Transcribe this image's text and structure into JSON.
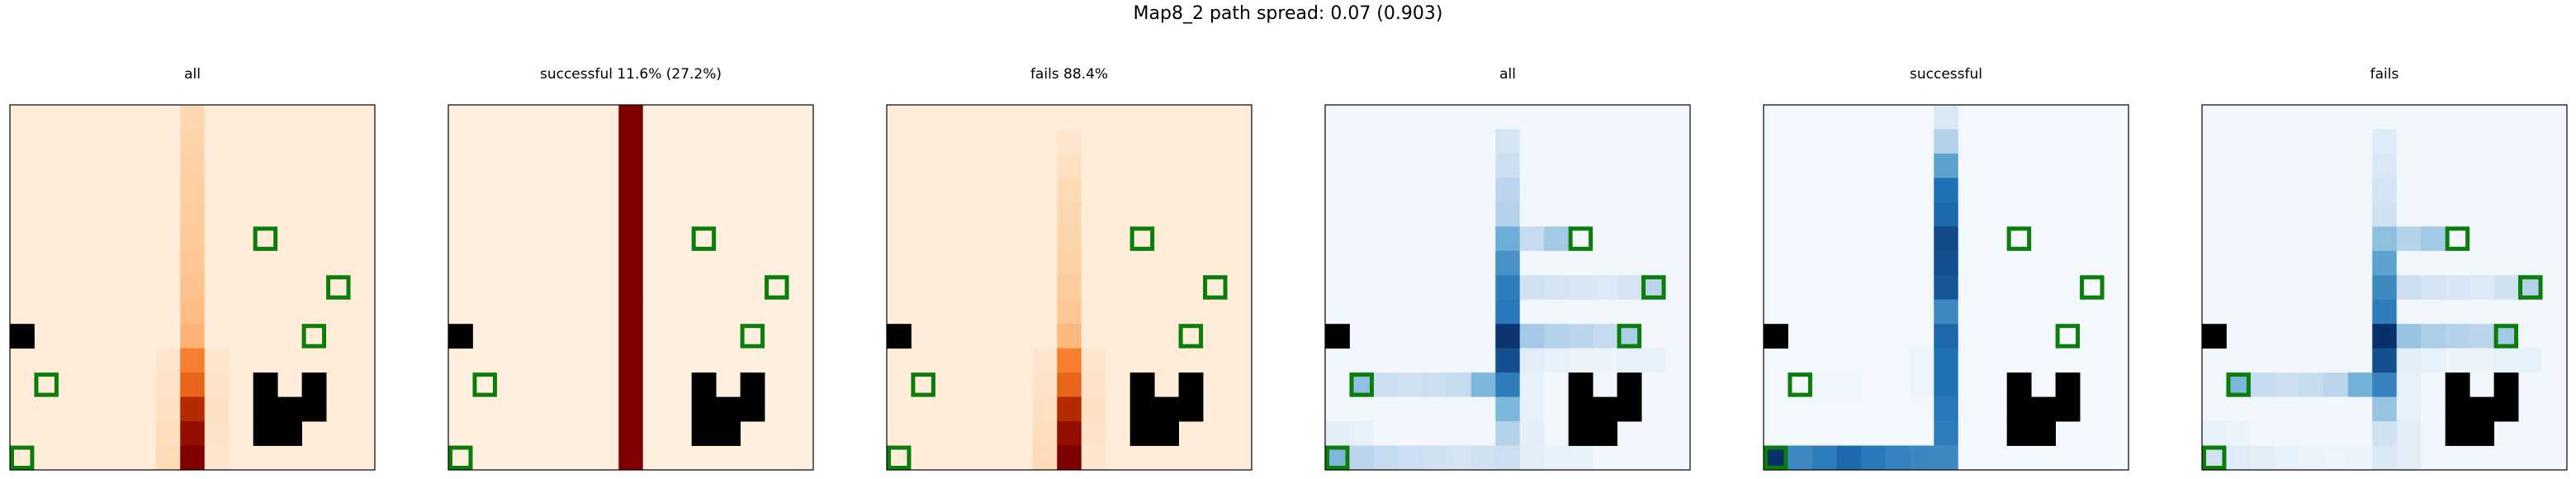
{
  "figure": {
    "suptitle": "Map8_2 path spread: 0.07 (0.903)"
  },
  "chart_data": [
    {
      "type": "heatmap",
      "title": "all",
      "colormap": "Oranges-like",
      "grid": {
        "rows": 15,
        "cols": 15
      },
      "axes": {
        "ticks": "none"
      },
      "cells": [
        {
          "r": 0,
          "c": 7,
          "v": 0.2
        },
        {
          "r": 1,
          "c": 7,
          "v": 0.22
        },
        {
          "r": 2,
          "c": 7,
          "v": 0.24
        },
        {
          "r": 3,
          "c": 7,
          "v": 0.25
        },
        {
          "r": 4,
          "c": 7,
          "v": 0.26
        },
        {
          "r": 5,
          "c": 7,
          "v": 0.27
        },
        {
          "r": 6,
          "c": 7,
          "v": 0.28
        },
        {
          "r": 7,
          "c": 7,
          "v": 0.3
        },
        {
          "r": 8,
          "c": 7,
          "v": 0.32
        },
        {
          "r": 9,
          "c": 7,
          "v": 0.36
        },
        {
          "r": 10,
          "c": 7,
          "v": 0.55
        },
        {
          "r": 11,
          "c": 7,
          "v": 0.65
        },
        {
          "r": 12,
          "c": 7,
          "v": 0.85
        },
        {
          "r": 13,
          "c": 7,
          "v": 0.95
        },
        {
          "r": 14,
          "c": 7,
          "v": 1.0
        },
        {
          "r": 10,
          "c": 6,
          "v": 0.1
        },
        {
          "r": 11,
          "c": 6,
          "v": 0.12
        },
        {
          "r": 12,
          "c": 6,
          "v": 0.14
        },
        {
          "r": 13,
          "c": 6,
          "v": 0.16
        },
        {
          "r": 14,
          "c": 6,
          "v": 0.18
        },
        {
          "r": 10,
          "c": 8,
          "v": 0.1
        },
        {
          "r": 11,
          "c": 8,
          "v": 0.12
        },
        {
          "r": 12,
          "c": 8,
          "v": 0.14
        },
        {
          "r": 13,
          "c": 8,
          "v": 0.12
        },
        {
          "r": 14,
          "c": 8,
          "v": 0.1
        }
      ],
      "default_value": 0.06
    },
    {
      "type": "heatmap",
      "title": "successful 11.6% (27.2%)",
      "colormap": "Oranges-like",
      "grid": {
        "rows": 15,
        "cols": 15
      },
      "axes": {
        "ticks": "none"
      },
      "cells": [
        {
          "r": 0,
          "c": 7,
          "v": 1.0
        },
        {
          "r": 1,
          "c": 7,
          "v": 1.0
        },
        {
          "r": 2,
          "c": 7,
          "v": 1.0
        },
        {
          "r": 3,
          "c": 7,
          "v": 1.0
        },
        {
          "r": 4,
          "c": 7,
          "v": 1.0
        },
        {
          "r": 5,
          "c": 7,
          "v": 1.0
        },
        {
          "r": 6,
          "c": 7,
          "v": 1.0
        },
        {
          "r": 7,
          "c": 7,
          "v": 1.0
        },
        {
          "r": 8,
          "c": 7,
          "v": 1.0
        },
        {
          "r": 9,
          "c": 7,
          "v": 1.0
        },
        {
          "r": 10,
          "c": 7,
          "v": 1.0
        },
        {
          "r": 11,
          "c": 7,
          "v": 1.0
        },
        {
          "r": 12,
          "c": 7,
          "v": 1.0
        },
        {
          "r": 13,
          "c": 7,
          "v": 1.0
        },
        {
          "r": 14,
          "c": 7,
          "v": 1.0
        }
      ],
      "default_value": 0.04
    },
    {
      "type": "heatmap",
      "title": "fails 88.4%",
      "colormap": "Oranges-like",
      "grid": {
        "rows": 15,
        "cols": 15
      },
      "axes": {
        "ticks": "none"
      },
      "cells": [
        {
          "r": 1,
          "c": 7,
          "v": 0.1
        },
        {
          "r": 2,
          "c": 7,
          "v": 0.14
        },
        {
          "r": 3,
          "c": 7,
          "v": 0.18
        },
        {
          "r": 4,
          "c": 7,
          "v": 0.2
        },
        {
          "r": 5,
          "c": 7,
          "v": 0.22
        },
        {
          "r": 6,
          "c": 7,
          "v": 0.24
        },
        {
          "r": 7,
          "c": 7,
          "v": 0.26
        },
        {
          "r": 8,
          "c": 7,
          "v": 0.28
        },
        {
          "r": 9,
          "c": 7,
          "v": 0.34
        },
        {
          "r": 10,
          "c": 7,
          "v": 0.55
        },
        {
          "r": 11,
          "c": 7,
          "v": 0.65
        },
        {
          "r": 12,
          "c": 7,
          "v": 0.85
        },
        {
          "r": 13,
          "c": 7,
          "v": 0.95
        },
        {
          "r": 14,
          "c": 7,
          "v": 1.0
        },
        {
          "r": 10,
          "c": 6,
          "v": 0.1
        },
        {
          "r": 11,
          "c": 6,
          "v": 0.12
        },
        {
          "r": 12,
          "c": 6,
          "v": 0.14
        },
        {
          "r": 13,
          "c": 6,
          "v": 0.16
        },
        {
          "r": 14,
          "c": 6,
          "v": 0.18
        },
        {
          "r": 10,
          "c": 8,
          "v": 0.1
        },
        {
          "r": 11,
          "c": 8,
          "v": 0.12
        },
        {
          "r": 12,
          "c": 8,
          "v": 0.14
        },
        {
          "r": 13,
          "c": 8,
          "v": 0.12
        },
        {
          "r": 14,
          "c": 8,
          "v": 0.1
        }
      ],
      "default_value": 0.06
    },
    {
      "type": "heatmap",
      "title": "all",
      "colormap": "Blues-like",
      "grid": {
        "rows": 15,
        "cols": 15
      },
      "axes": {
        "ticks": "none"
      },
      "cells": [
        {
          "r": 1,
          "c": 7,
          "v": 0.18
        },
        {
          "r": 2,
          "c": 7,
          "v": 0.22
        },
        {
          "r": 3,
          "c": 7,
          "v": 0.28
        },
        {
          "r": 4,
          "c": 7,
          "v": 0.3
        },
        {
          "r": 5,
          "c": 7,
          "v": 0.5
        },
        {
          "r": 6,
          "c": 7,
          "v": 0.62
        },
        {
          "r": 7,
          "c": 7,
          "v": 0.7
        },
        {
          "r": 8,
          "c": 7,
          "v": 0.72
        },
        {
          "r": 9,
          "c": 7,
          "v": 0.98
        },
        {
          "r": 10,
          "c": 7,
          "v": 0.88
        },
        {
          "r": 11,
          "c": 7,
          "v": 0.7
        },
        {
          "r": 12,
          "c": 7,
          "v": 0.45
        },
        {
          "r": 13,
          "c": 7,
          "v": 0.3
        },
        {
          "r": 14,
          "c": 7,
          "v": 0.22
        },
        {
          "r": 5,
          "c": 8,
          "v": 0.25
        },
        {
          "r": 5,
          "c": 9,
          "v": 0.35
        },
        {
          "r": 7,
          "c": 8,
          "v": 0.2
        },
        {
          "r": 7,
          "c": 9,
          "v": 0.18
        },
        {
          "r": 7,
          "c": 10,
          "v": 0.16
        },
        {
          "r": 7,
          "c": 11,
          "v": 0.14
        },
        {
          "r": 7,
          "c": 12,
          "v": 0.18
        },
        {
          "r": 7,
          "c": 13,
          "v": 0.28
        },
        {
          "r": 9,
          "c": 8,
          "v": 0.35
        },
        {
          "r": 9,
          "c": 9,
          "v": 0.3
        },
        {
          "r": 9,
          "c": 10,
          "v": 0.28
        },
        {
          "r": 9,
          "c": 11,
          "v": 0.25
        },
        {
          "r": 9,
          "c": 12,
          "v": 0.32
        },
        {
          "r": 10,
          "c": 8,
          "v": 0.1
        },
        {
          "r": 10,
          "c": 9,
          "v": 0.08
        },
        {
          "r": 10,
          "c": 10,
          "v": 0.06
        },
        {
          "r": 10,
          "c": 11,
          "v": 0.06
        },
        {
          "r": 10,
          "c": 12,
          "v": 0.08
        },
        {
          "r": 10,
          "c": 13,
          "v": 0.08
        },
        {
          "r": 11,
          "c": 1,
          "v": 0.4
        },
        {
          "r": 11,
          "c": 2,
          "v": 0.22
        },
        {
          "r": 11,
          "c": 3,
          "v": 0.2
        },
        {
          "r": 11,
          "c": 4,
          "v": 0.22
        },
        {
          "r": 11,
          "c": 5,
          "v": 0.25
        },
        {
          "r": 11,
          "c": 6,
          "v": 0.45
        },
        {
          "r": 11,
          "c": 8,
          "v": 0.08
        },
        {
          "r": 12,
          "c": 8,
          "v": 0.08
        },
        {
          "r": 13,
          "c": 8,
          "v": 0.1
        },
        {
          "r": 14,
          "c": 8,
          "v": 0.1
        },
        {
          "r": 14,
          "c": 9,
          "v": 0.08
        },
        {
          "r": 14,
          "c": 10,
          "v": 0.08
        },
        {
          "r": 14,
          "c": 0,
          "v": 0.45
        },
        {
          "r": 14,
          "c": 1,
          "v": 0.28
        },
        {
          "r": 14,
          "c": 2,
          "v": 0.25
        },
        {
          "r": 14,
          "c": 3,
          "v": 0.22
        },
        {
          "r": 14,
          "c": 4,
          "v": 0.2
        },
        {
          "r": 14,
          "c": 5,
          "v": 0.18
        },
        {
          "r": 14,
          "c": 6,
          "v": 0.2
        },
        {
          "r": 13,
          "c": 0,
          "v": 0.1
        },
        {
          "r": 13,
          "c": 1,
          "v": 0.08
        }
      ],
      "default_value": 0.03
    },
    {
      "type": "heatmap",
      "title": "successful",
      "colormap": "Blues-like",
      "grid": {
        "rows": 15,
        "cols": 15
      },
      "axes": {
        "ticks": "none"
      },
      "cells": [
        {
          "r": 0,
          "c": 7,
          "v": 0.15
        },
        {
          "r": 1,
          "c": 7,
          "v": 0.3
        },
        {
          "r": 2,
          "c": 7,
          "v": 0.55
        },
        {
          "r": 3,
          "c": 7,
          "v": 0.75
        },
        {
          "r": 4,
          "c": 7,
          "v": 0.78
        },
        {
          "r": 5,
          "c": 7,
          "v": 0.9
        },
        {
          "r": 6,
          "c": 7,
          "v": 0.88
        },
        {
          "r": 7,
          "c": 7,
          "v": 0.85
        },
        {
          "r": 8,
          "c": 7,
          "v": 0.65
        },
        {
          "r": 9,
          "c": 7,
          "v": 0.78
        },
        {
          "r": 10,
          "c": 7,
          "v": 0.75
        },
        {
          "r": 11,
          "c": 7,
          "v": 0.75
        },
        {
          "r": 12,
          "c": 7,
          "v": 0.72
        },
        {
          "r": 13,
          "c": 7,
          "v": 0.7
        },
        {
          "r": 14,
          "c": 7,
          "v": 0.65
        },
        {
          "r": 14,
          "c": 0,
          "v": 1.0
        },
        {
          "r": 14,
          "c": 1,
          "v": 0.65
        },
        {
          "r": 14,
          "c": 2,
          "v": 0.7
        },
        {
          "r": 14,
          "c": 3,
          "v": 0.78
        },
        {
          "r": 14,
          "c": 4,
          "v": 0.72
        },
        {
          "r": 14,
          "c": 5,
          "v": 0.68
        },
        {
          "r": 14,
          "c": 6,
          "v": 0.66
        },
        {
          "r": 10,
          "c": 6,
          "v": 0.05
        },
        {
          "r": 11,
          "c": 6,
          "v": 0.05
        },
        {
          "r": 11,
          "c": 2,
          "v": 0.04
        },
        {
          "r": 11,
          "c": 3,
          "v": 0.04
        }
      ],
      "default_value": 0.02
    },
    {
      "type": "heatmap",
      "title": "fails",
      "colormap": "Blues-like",
      "grid": {
        "rows": 15,
        "cols": 15
      },
      "axes": {
        "ticks": "none"
      },
      "cells": [
        {
          "r": 1,
          "c": 7,
          "v": 0.12
        },
        {
          "r": 2,
          "c": 7,
          "v": 0.15
        },
        {
          "r": 3,
          "c": 7,
          "v": 0.18
        },
        {
          "r": 4,
          "c": 7,
          "v": 0.2
        },
        {
          "r": 5,
          "c": 7,
          "v": 0.4
        },
        {
          "r": 6,
          "c": 7,
          "v": 0.55
        },
        {
          "r": 7,
          "c": 7,
          "v": 0.65
        },
        {
          "r": 8,
          "c": 7,
          "v": 0.7
        },
        {
          "r": 9,
          "c": 7,
          "v": 1.0
        },
        {
          "r": 10,
          "c": 7,
          "v": 0.88
        },
        {
          "r": 11,
          "c": 7,
          "v": 0.68
        },
        {
          "r": 12,
          "c": 7,
          "v": 0.38
        },
        {
          "r": 13,
          "c": 7,
          "v": 0.2
        },
        {
          "r": 14,
          "c": 7,
          "v": 0.15
        },
        {
          "r": 5,
          "c": 8,
          "v": 0.3
        },
        {
          "r": 5,
          "c": 9,
          "v": 0.35
        },
        {
          "r": 7,
          "c": 8,
          "v": 0.22
        },
        {
          "r": 7,
          "c": 9,
          "v": 0.18
        },
        {
          "r": 7,
          "c": 10,
          "v": 0.16
        },
        {
          "r": 7,
          "c": 11,
          "v": 0.14
        },
        {
          "r": 7,
          "c": 12,
          "v": 0.2
        },
        {
          "r": 7,
          "c": 13,
          "v": 0.3
        },
        {
          "r": 9,
          "c": 8,
          "v": 0.38
        },
        {
          "r": 9,
          "c": 9,
          "v": 0.32
        },
        {
          "r": 9,
          "c": 10,
          "v": 0.3
        },
        {
          "r": 9,
          "c": 11,
          "v": 0.28
        },
        {
          "r": 9,
          "c": 12,
          "v": 0.35
        },
        {
          "r": 10,
          "c": 8,
          "v": 0.1
        },
        {
          "r": 10,
          "c": 9,
          "v": 0.08
        },
        {
          "r": 10,
          "c": 10,
          "v": 0.06
        },
        {
          "r": 10,
          "c": 11,
          "v": 0.06
        },
        {
          "r": 10,
          "c": 12,
          "v": 0.08
        },
        {
          "r": 10,
          "c": 13,
          "v": 0.08
        },
        {
          "r": 11,
          "c": 1,
          "v": 0.45
        },
        {
          "r": 11,
          "c": 2,
          "v": 0.25
        },
        {
          "r": 11,
          "c": 3,
          "v": 0.22
        },
        {
          "r": 11,
          "c": 4,
          "v": 0.24
        },
        {
          "r": 11,
          "c": 5,
          "v": 0.28
        },
        {
          "r": 11,
          "c": 6,
          "v": 0.48
        },
        {
          "r": 11,
          "c": 8,
          "v": 0.08
        },
        {
          "r": 12,
          "c": 8,
          "v": 0.08
        },
        {
          "r": 13,
          "c": 8,
          "v": 0.1
        },
        {
          "r": 14,
          "c": 8,
          "v": 0.1
        },
        {
          "r": 14,
          "c": 0,
          "v": 0.2
        },
        {
          "r": 14,
          "c": 1,
          "v": 0.12
        },
        {
          "r": 14,
          "c": 2,
          "v": 0.1
        },
        {
          "r": 14,
          "c": 3,
          "v": 0.08
        },
        {
          "r": 14,
          "c": 4,
          "v": 0.06
        },
        {
          "r": 14,
          "c": 5,
          "v": 0.05
        },
        {
          "r": 14,
          "c": 6,
          "v": 0.06
        },
        {
          "r": 13,
          "c": 0,
          "v": 0.08
        },
        {
          "r": 13,
          "c": 1,
          "v": 0.06
        }
      ],
      "default_value": 0.03
    }
  ],
  "map": {
    "obstacles": [
      {
        "r": 9,
        "c": 0
      },
      {
        "r": 11,
        "c": 10
      },
      {
        "r": 12,
        "c": 10
      },
      {
        "r": 13,
        "c": 10
      },
      {
        "r": 12,
        "c": 11
      },
      {
        "r": 13,
        "c": 11
      },
      {
        "r": 11,
        "c": 12
      },
      {
        "r": 12,
        "c": 12
      }
    ],
    "targets": [
      {
        "r": 5,
        "c": 10
      },
      {
        "r": 7,
        "c": 13
      },
      {
        "r": 9,
        "c": 12
      },
      {
        "r": 11,
        "c": 1
      },
      {
        "r": 14,
        "c": 0
      }
    ],
    "obstacle_color": "#000000",
    "target_color": "#0a7d0a"
  },
  "colormaps": {
    "Oranges-like": [
      "#fff5eb",
      "#fdd0a2",
      "#fd8d3c",
      "#d94801",
      "#7f0000"
    ],
    "Blues-like": [
      "#f7fbff",
      "#c6dbef",
      "#6baed6",
      "#2171b5",
      "#08306b"
    ]
  }
}
